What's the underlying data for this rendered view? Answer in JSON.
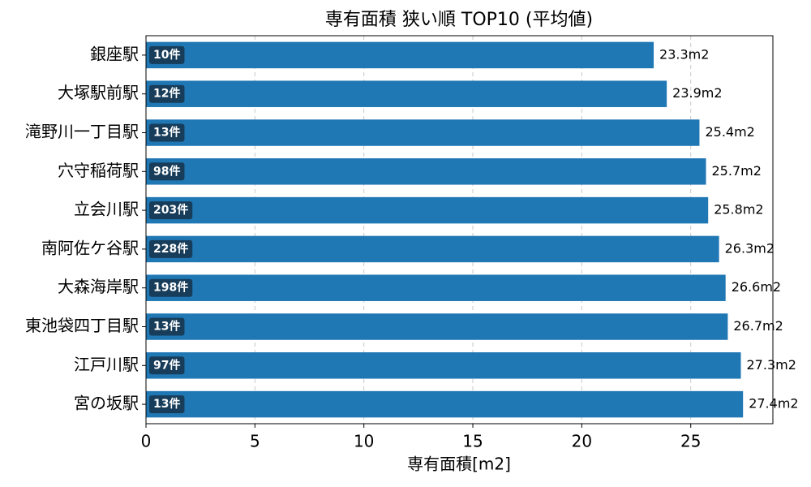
{
  "chart_data": {
    "type": "barh",
    "title": "専有面積 狭い順 TOP10 (平均値)",
    "x_label": "専有面積[m2]",
    "categories": [
      "銀座駅",
      "大塚駅前駅",
      "滝野川一丁目駅",
      "穴守稲荷駅",
      "立会川駅",
      "南阿佐ケ谷駅",
      "大森海岸駅",
      "東池袋四丁目駅",
      "江戸川駅",
      "宮の坂駅"
    ],
    "values": [
      23.3,
      23.9,
      25.4,
      25.7,
      25.8,
      26.3,
      26.6,
      26.7,
      27.3,
      27.4
    ],
    "value_labels": [
      "23.3m2",
      "23.9m2",
      "25.4m2",
      "25.7m2",
      "25.8m2",
      "26.3m2",
      "26.6m2",
      "26.7m2",
      "27.3m2",
      "27.4m2"
    ],
    "annotations": [
      "10件",
      "12件",
      "13件",
      "98件",
      "203件",
      "228件",
      "198件",
      "13件",
      "97件",
      "13件"
    ],
    "color": "#1f77b4",
    "annotation_color": "#183d5a",
    "xlim": [
      0,
      28.77
    ],
    "xticks": [
      0,
      5,
      10,
      15,
      20,
      25
    ],
    "grid": true
  }
}
